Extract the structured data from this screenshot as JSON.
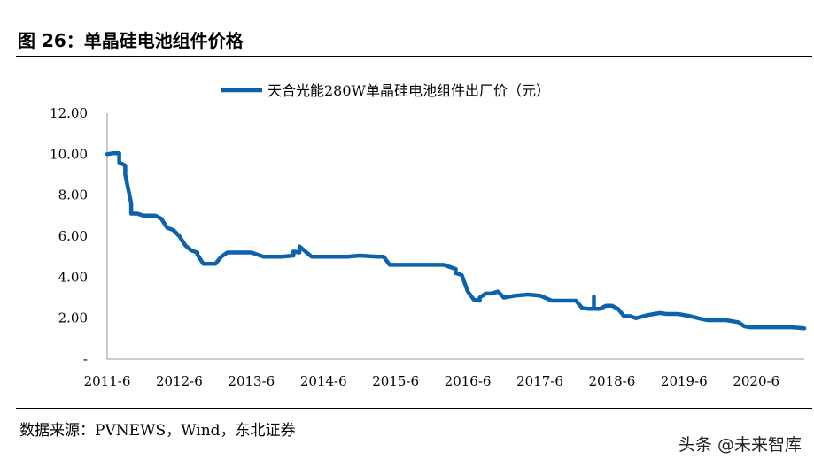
{
  "figure": {
    "title": "图 26：单晶硅电池组件价格",
    "source": "数据来源：PVNEWS，Wind，东北证券",
    "watermark": "头条 @未来智库"
  },
  "chart_data": {
    "type": "line",
    "title": "",
    "xlabel": "",
    "ylabel": "",
    "ylim": [
      0,
      12
    ],
    "yticks": [
      0,
      2,
      4,
      6,
      8,
      10,
      12
    ],
    "ytick_labels": [
      "-",
      "2.00",
      "4.00",
      "6.00",
      "8.00",
      "10.00",
      "12.00"
    ],
    "xticks": [
      "2011-6",
      "2012-6",
      "2013-6",
      "2014-6",
      "2015-6",
      "2016-6",
      "2017-6",
      "2018-6",
      "2019-6",
      "2020-6"
    ],
    "xlim": [
      "2011-06",
      "2021-02"
    ],
    "grid": false,
    "legend_position": "top-center",
    "color": "#0d62ad",
    "series": [
      {
        "name": "天合光能280W单晶硅电池组件出厂价（元）",
        "x": [
          "2011-06",
          "2011-07",
          "2011-08",
          "2011-08",
          "2011-09",
          "2011-09",
          "2011-10",
          "2011-10",
          "2011-11",
          "2011-11",
          "2011-12",
          "2012-02",
          "2012-03",
          "2012-04",
          "2012-05",
          "2012-06",
          "2012-07",
          "2012-08",
          "2012-09",
          "2012-09",
          "2012-10",
          "2012-11",
          "2012-12",
          "2013-01",
          "2013-02",
          "2013-03",
          "2013-04",
          "2013-06",
          "2013-08",
          "2013-09",
          "2013-11",
          "2014-01",
          "2014-01",
          "2014-02",
          "2014-02",
          "2014-04",
          "2014-07",
          "2014-09",
          "2014-10",
          "2014-12",
          "2015-03",
          "2015-04",
          "2015-05",
          "2015-11",
          "2015-12",
          "2016-01",
          "2016-01",
          "2016-02",
          "2016-03",
          "2016-04",
          "2016-04",
          "2016-05",
          "2016-06",
          "2016-07",
          "2016-08",
          "2016-08",
          "2016-09",
          "2016-10",
          "2016-11",
          "2016-12",
          "2017-01",
          "2017-02",
          "2017-04",
          "2017-06",
          "2017-08",
          "2017-10",
          "2017-12",
          "2018-01",
          "2018-02",
          "2018-03",
          "2018-03",
          "2018-03",
          "2018-04",
          "2018-05",
          "2018-06",
          "2018-07",
          "2018-08",
          "2018-09",
          "2018-10",
          "2018-12",
          "2019-01",
          "2019-02",
          "2019-03",
          "2019-05",
          "2019-07",
          "2019-09",
          "2019-10",
          "2019-11",
          "2019-12",
          "2020-01",
          "2020-03",
          "2020-04",
          "2020-05",
          "2020-06",
          "2020-09",
          "2020-12",
          "2021-02"
        ],
        "values": [
          10.0,
          10.05,
          10.05,
          9.6,
          9.45,
          9.0,
          7.6,
          7.1,
          7.1,
          7.1,
          7.0,
          7.0,
          6.85,
          6.4,
          6.3,
          6.0,
          5.55,
          5.3,
          5.2,
          5.1,
          4.65,
          4.65,
          4.65,
          5.0,
          5.2,
          5.2,
          5.2,
          5.2,
          5.0,
          5.0,
          5.0,
          5.05,
          5.25,
          5.2,
          5.5,
          5.0,
          5.0,
          5.0,
          5.0,
          5.05,
          5.0,
          5.0,
          4.6,
          4.6,
          4.6,
          4.6,
          4.6,
          4.6,
          4.5,
          4.4,
          4.2,
          4.1,
          3.3,
          2.9,
          2.85,
          3.0,
          3.2,
          3.2,
          3.3,
          3.0,
          3.05,
          3.1,
          3.15,
          3.1,
          2.85,
          2.85,
          2.85,
          2.5,
          2.45,
          2.45,
          3.05,
          2.45,
          2.45,
          2.6,
          2.6,
          2.45,
          2.1,
          2.1,
          2.0,
          2.15,
          2.2,
          2.25,
          2.2,
          2.2,
          2.1,
          1.95,
          1.9,
          1.9,
          1.9,
          1.9,
          1.8,
          1.6,
          1.55,
          1.55,
          1.55,
          1.55,
          1.5
        ]
      }
    ]
  }
}
